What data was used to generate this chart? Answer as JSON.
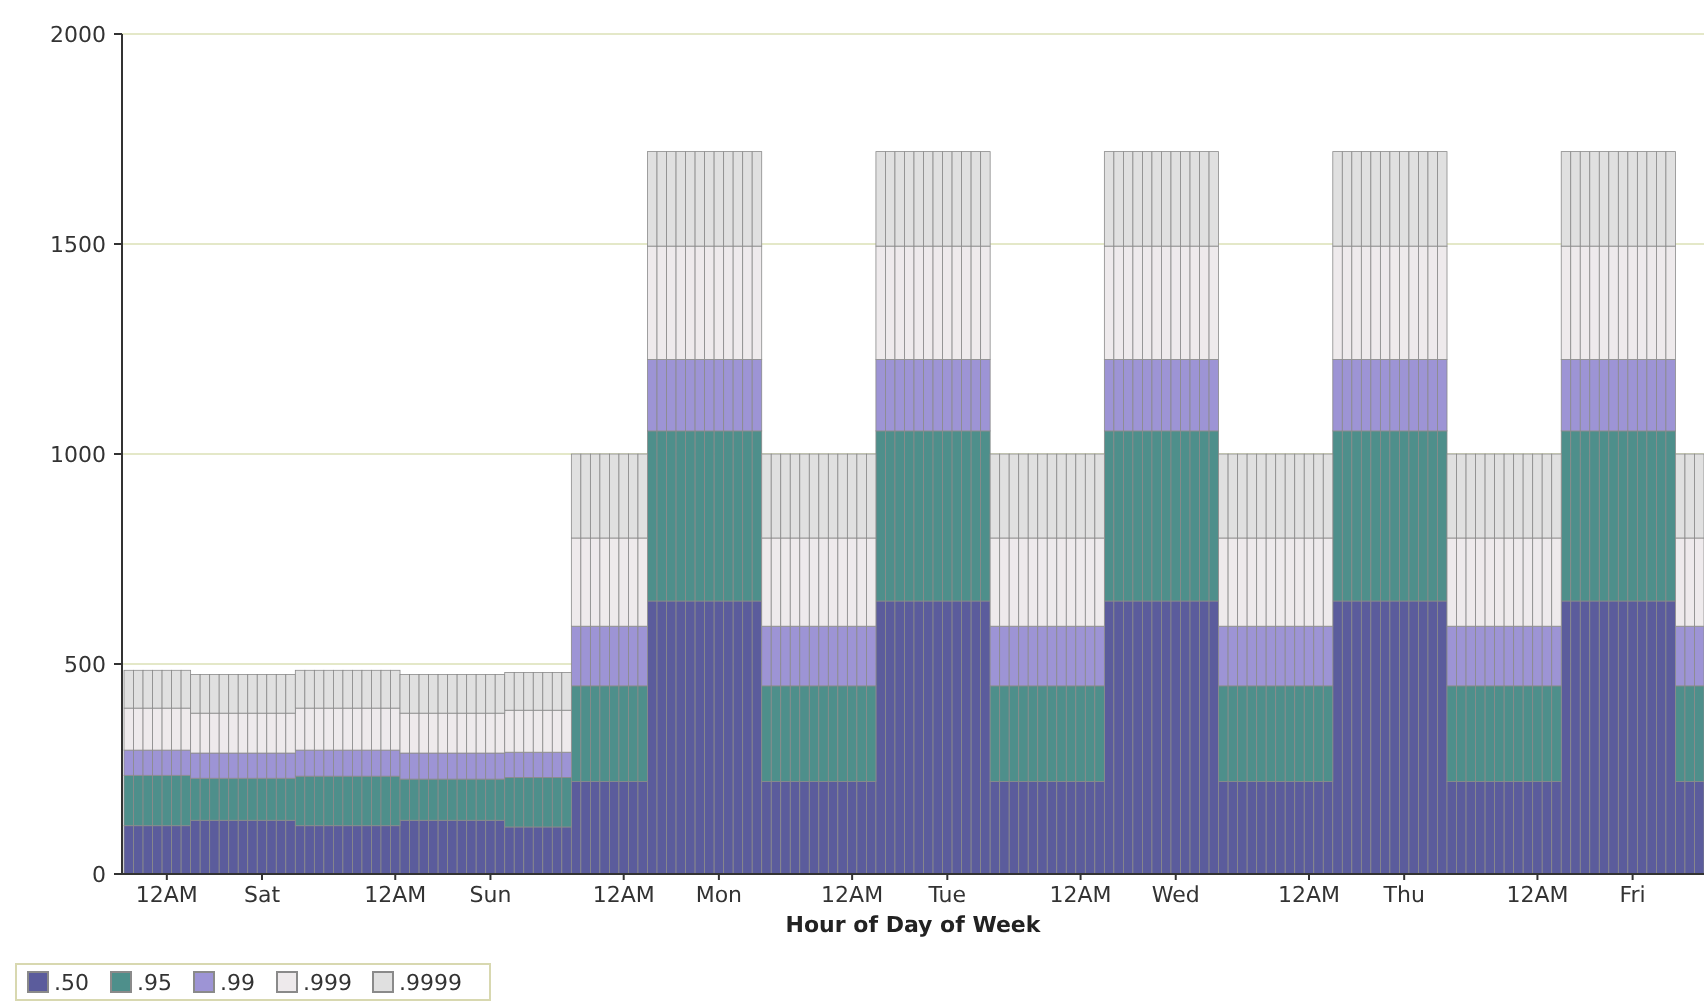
{
  "chart_data": {
    "type": "bar",
    "stacked": true,
    "xlabel": "Hour of Day of Week",
    "categories": [
      null,
      null,
      null,
      null,
      "12AM",
      null,
      null,
      null,
      null,
      null,
      null,
      null,
      null,
      null,
      "Sat",
      null,
      null,
      null,
      null,
      null,
      null,
      null,
      null,
      null,
      null,
      null,
      null,
      null,
      "12AM",
      null,
      null,
      null,
      null,
      null,
      null,
      null,
      null,
      null,
      "Sun",
      null,
      null,
      null,
      null,
      null,
      null,
      null,
      null,
      null,
      null,
      null,
      null,
      null,
      "12AM",
      null,
      null,
      null,
      null,
      null,
      null,
      null,
      null,
      null,
      "Mon",
      null,
      null,
      null,
      null,
      null,
      null,
      null,
      null,
      null,
      null,
      null,
      null,
      null,
      "12AM",
      null,
      null,
      null,
      null,
      null,
      null,
      null,
      null,
      null,
      "Tue",
      null,
      null,
      null,
      null,
      null,
      null,
      null,
      null,
      null,
      null,
      null,
      null,
      null,
      "12AM",
      null,
      null,
      null,
      null,
      null,
      null,
      null,
      null,
      null,
      "Wed",
      null,
      null,
      null,
      null,
      null,
      null,
      null,
      null,
      null,
      null,
      null,
      null,
      null,
      "12AM",
      null,
      null,
      null,
      null,
      null,
      null,
      null,
      null,
      null,
      "Thu",
      null,
      null,
      null,
      null,
      null,
      null,
      null,
      null,
      null,
      null,
      null,
      null,
      null,
      "12AM",
      null,
      null,
      null,
      null,
      null,
      null,
      null,
      null,
      null,
      "Fri",
      null,
      null,
      null,
      null,
      null,
      null,
      null
    ],
    "series": [
      {
        "name": ".50",
        "color": "#5b5c9c",
        "values": [
          115,
          115,
          115,
          115,
          115,
          115,
          115,
          128,
          128,
          128,
          128,
          128,
          128,
          128,
          128,
          128,
          128,
          128,
          115,
          115,
          115,
          115,
          115,
          115,
          115,
          115,
          115,
          115,
          115,
          128,
          128,
          128,
          128,
          128,
          128,
          128,
          128,
          128,
          128,
          128,
          112,
          112,
          112,
          112,
          112,
          112,
          112,
          220,
          220,
          220,
          220,
          220,
          220,
          220,
          220,
          650,
          650,
          650,
          650,
          650,
          650,
          650,
          650,
          650,
          650,
          650,
          650,
          220,
          220,
          220,
          220,
          220,
          220,
          220,
          220,
          220,
          220,
          220,
          220,
          650,
          650,
          650,
          650,
          650,
          650,
          650,
          650,
          650,
          650,
          650,
          650,
          220,
          220,
          220,
          220,
          220,
          220,
          220,
          220,
          220,
          220,
          220,
          220,
          650,
          650,
          650,
          650,
          650,
          650,
          650,
          650,
          650,
          650,
          650,
          650,
          220,
          220,
          220,
          220,
          220,
          220,
          220,
          220,
          220,
          220,
          220,
          220,
          650,
          650,
          650,
          650,
          650,
          650,
          650,
          650,
          650,
          650,
          650,
          650,
          220,
          220,
          220,
          220,
          220,
          220,
          220,
          220,
          220,
          220,
          220,
          220,
          650,
          650,
          650,
          650,
          650,
          650,
          650,
          650,
          650,
          650,
          650,
          650,
          220,
          220,
          220
        ]
      },
      {
        "name": ".95",
        "color": "#4e8f8b",
        "values": [
          120,
          120,
          120,
          120,
          120,
          120,
          120,
          100,
          100,
          100,
          100,
          100,
          100,
          100,
          100,
          100,
          100,
          100,
          118,
          118,
          118,
          118,
          118,
          118,
          118,
          118,
          118,
          118,
          118,
          98,
          98,
          98,
          98,
          98,
          98,
          98,
          98,
          98,
          98,
          98,
          118,
          118,
          118,
          118,
          118,
          118,
          118,
          228,
          228,
          228,
          228,
          228,
          228,
          228,
          228,
          405,
          405,
          405,
          405,
          405,
          405,
          405,
          405,
          405,
          405,
          405,
          405,
          228,
          228,
          228,
          228,
          228,
          228,
          228,
          228,
          228,
          228,
          228,
          228,
          405,
          405,
          405,
          405,
          405,
          405,
          405,
          405,
          405,
          405,
          405,
          405,
          228,
          228,
          228,
          228,
          228,
          228,
          228,
          228,
          228,
          228,
          228,
          228,
          405,
          405,
          405,
          405,
          405,
          405,
          405,
          405,
          405,
          405,
          405,
          405,
          228,
          228,
          228,
          228,
          228,
          228,
          228,
          228,
          228,
          228,
          228,
          228,
          405,
          405,
          405,
          405,
          405,
          405,
          405,
          405,
          405,
          405,
          405,
          405,
          228,
          228,
          228,
          228,
          228,
          228,
          228,
          228,
          228,
          228,
          228,
          228,
          405,
          405,
          405,
          405,
          405,
          405,
          405,
          405,
          405,
          405,
          405,
          405,
          228,
          228,
          228
        ]
      },
      {
        "name": ".99",
        "color": "#9d94d5",
        "values": [
          60,
          60,
          60,
          60,
          60,
          60,
          60,
          60,
          60,
          60,
          60,
          60,
          60,
          60,
          60,
          60,
          60,
          60,
          62,
          62,
          62,
          62,
          62,
          62,
          62,
          62,
          62,
          62,
          62,
          62,
          62,
          62,
          62,
          62,
          62,
          62,
          62,
          62,
          62,
          62,
          60,
          60,
          60,
          60,
          60,
          60,
          60,
          142,
          142,
          142,
          142,
          142,
          142,
          142,
          142,
          170,
          170,
          170,
          170,
          170,
          170,
          170,
          170,
          170,
          170,
          170,
          170,
          142,
          142,
          142,
          142,
          142,
          142,
          142,
          142,
          142,
          142,
          142,
          142,
          170,
          170,
          170,
          170,
          170,
          170,
          170,
          170,
          170,
          170,
          170,
          170,
          142,
          142,
          142,
          142,
          142,
          142,
          142,
          142,
          142,
          142,
          142,
          142,
          170,
          170,
          170,
          170,
          170,
          170,
          170,
          170,
          170,
          170,
          170,
          170,
          142,
          142,
          142,
          142,
          142,
          142,
          142,
          142,
          142,
          142,
          142,
          142,
          170,
          170,
          170,
          170,
          170,
          170,
          170,
          170,
          170,
          170,
          170,
          170,
          142,
          142,
          142,
          142,
          142,
          142,
          142,
          142,
          142,
          142,
          142,
          142,
          170,
          170,
          170,
          170,
          170,
          170,
          170,
          170,
          170,
          170,
          170,
          170,
          142,
          142,
          142
        ]
      },
      {
        "name": ".999",
        "color": "#eeeaec",
        "values": [
          100,
          100,
          100,
          100,
          100,
          100,
          100,
          95,
          95,
          95,
          95,
          95,
          95,
          95,
          95,
          95,
          95,
          95,
          100,
          100,
          100,
          100,
          100,
          100,
          100,
          100,
          100,
          100,
          100,
          95,
          95,
          95,
          95,
          95,
          95,
          95,
          95,
          95,
          95,
          95,
          100,
          100,
          100,
          100,
          100,
          100,
          100,
          210,
          210,
          210,
          210,
          210,
          210,
          210,
          210,
          270,
          270,
          270,
          270,
          270,
          270,
          270,
          270,
          270,
          270,
          270,
          270,
          210,
          210,
          210,
          210,
          210,
          210,
          210,
          210,
          210,
          210,
          210,
          210,
          270,
          270,
          270,
          270,
          270,
          270,
          270,
          270,
          270,
          270,
          270,
          270,
          210,
          210,
          210,
          210,
          210,
          210,
          210,
          210,
          210,
          210,
          210,
          210,
          270,
          270,
          270,
          270,
          270,
          270,
          270,
          270,
          270,
          270,
          270,
          270,
          210,
          210,
          210,
          210,
          210,
          210,
          210,
          210,
          210,
          210,
          210,
          210,
          270,
          270,
          270,
          270,
          270,
          270,
          270,
          270,
          270,
          270,
          270,
          270,
          210,
          210,
          210,
          210,
          210,
          210,
          210,
          210,
          210,
          210,
          210,
          210,
          270,
          270,
          270,
          270,
          270,
          270,
          270,
          270,
          270,
          270,
          270,
          270,
          210,
          210,
          210
        ]
      },
      {
        "name": ".9999",
        "color": "#e0e0e0",
        "values": [
          90,
          90,
          90,
          90,
          90,
          90,
          90,
          92,
          92,
          92,
          92,
          92,
          92,
          92,
          92,
          92,
          92,
          92,
          90,
          90,
          90,
          90,
          90,
          90,
          90,
          90,
          90,
          90,
          90,
          92,
          92,
          92,
          92,
          92,
          92,
          92,
          92,
          92,
          92,
          92,
          90,
          90,
          90,
          90,
          90,
          90,
          90,
          200,
          200,
          200,
          200,
          200,
          200,
          200,
          200,
          225,
          225,
          225,
          225,
          225,
          225,
          225,
          225,
          225,
          225,
          225,
          225,
          200,
          200,
          200,
          200,
          200,
          200,
          200,
          200,
          200,
          200,
          200,
          200,
          225,
          225,
          225,
          225,
          225,
          225,
          225,
          225,
          225,
          225,
          225,
          225,
          200,
          200,
          200,
          200,
          200,
          200,
          200,
          200,
          200,
          200,
          200,
          200,
          225,
          225,
          225,
          225,
          225,
          225,
          225,
          225,
          225,
          225,
          225,
          225,
          200,
          200,
          200,
          200,
          200,
          200,
          200,
          200,
          200,
          200,
          200,
          200,
          225,
          225,
          225,
          225,
          225,
          225,
          225,
          225,
          225,
          225,
          225,
          225,
          200,
          200,
          200,
          200,
          200,
          200,
          200,
          200,
          200,
          200,
          200,
          200,
          225,
          225,
          225,
          225,
          225,
          225,
          225,
          225,
          225,
          225,
          225,
          225,
          200,
          200,
          200
        ]
      }
    ],
    "ylim": [
      0,
      2000
    ],
    "yticks": [
      0,
      500,
      1000,
      1500,
      2000
    ],
    "grid": "y",
    "legend": "bottom left"
  }
}
